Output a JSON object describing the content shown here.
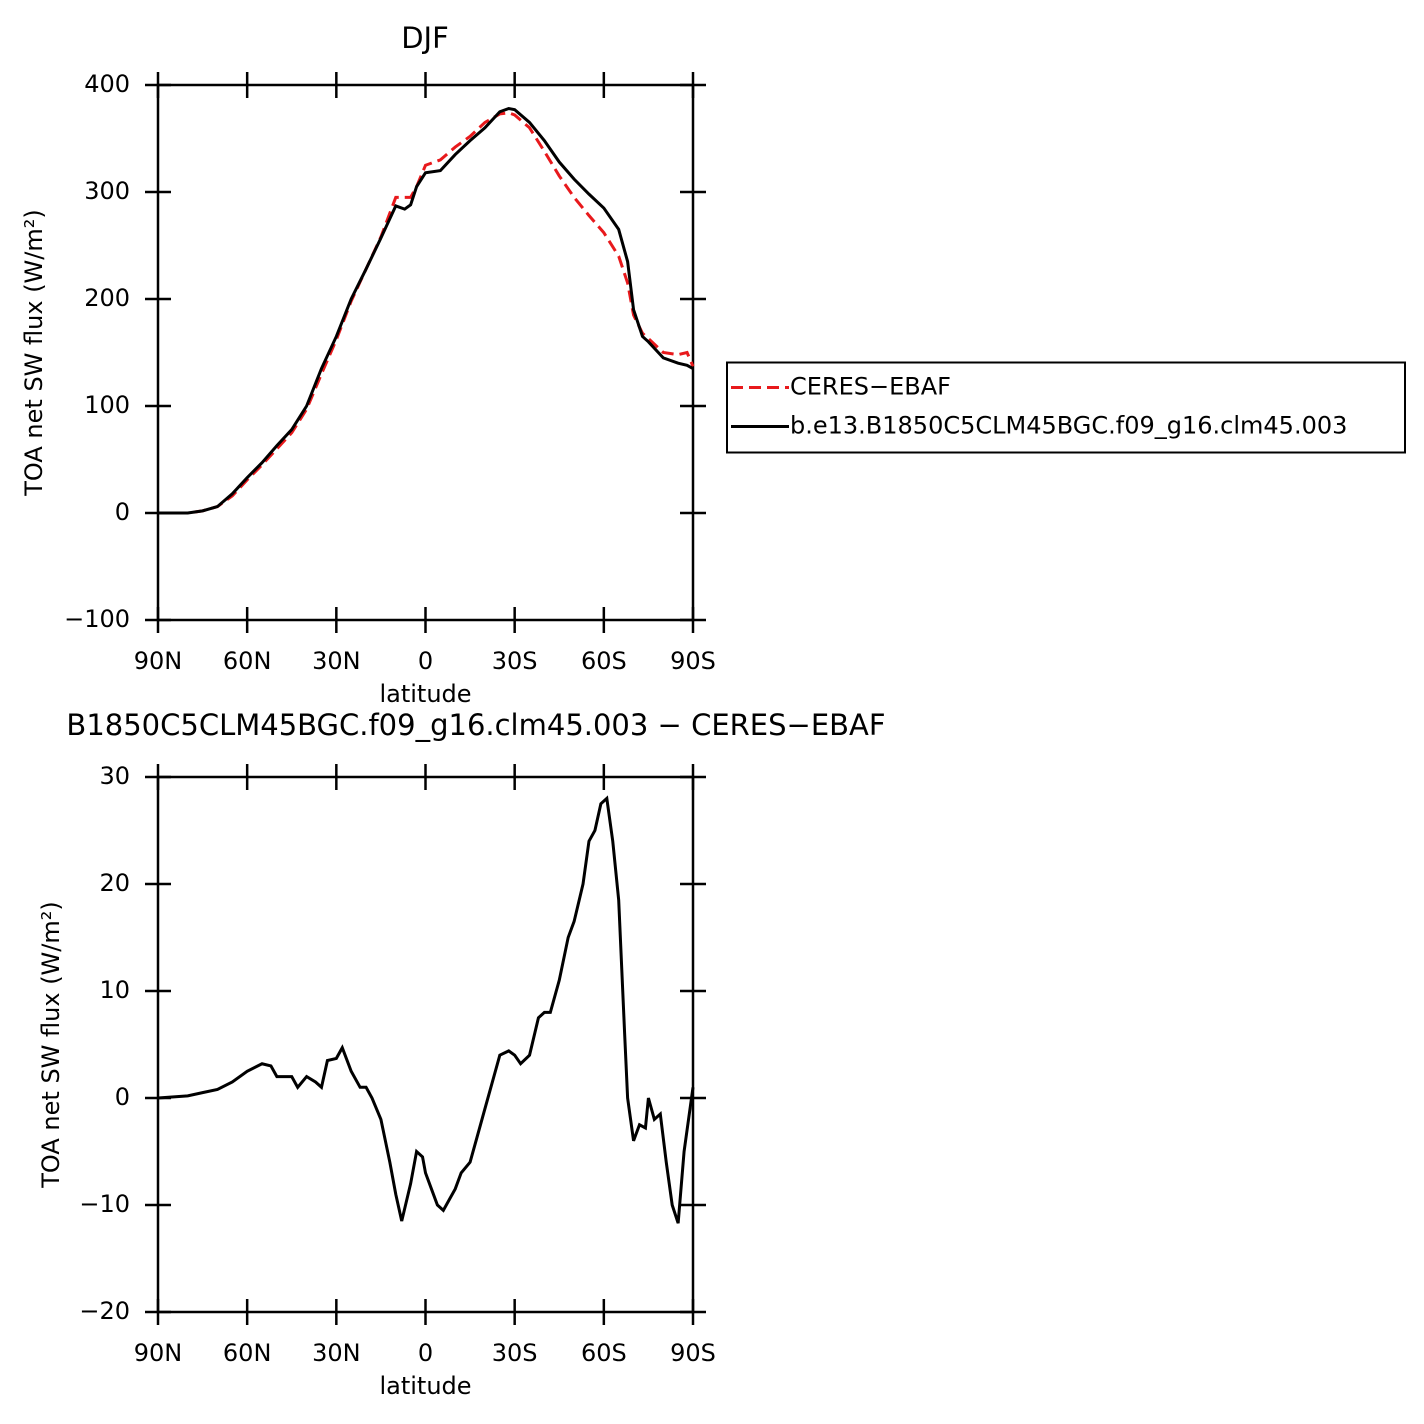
{
  "chart_data": [
    {
      "type": "line",
      "title": "DJF",
      "ylabel": "TOA net SW flux (W/m²)",
      "xlabel": "latitude",
      "x": [
        90,
        85,
        80,
        75,
        70,
        65,
        60,
        55,
        50,
        45,
        40,
        35,
        30,
        25,
        20,
        15,
        10,
        7,
        5,
        3,
        0,
        -5,
        -10,
        -15,
        -20,
        -25,
        -28,
        -30,
        -35,
        -40,
        -45,
        -50,
        -55,
        -60,
        -65,
        -68,
        -70,
        -73,
        -75,
        -80,
        -85,
        -88,
        -90
      ],
      "series": [
        {
          "name": "CERES−EBAF",
          "color": "#e8191c",
          "dashed": true,
          "values": [
            0,
            0,
            0,
            2,
            6,
            16,
            31,
            45,
            60,
            75,
            97,
            130,
            162,
            198,
            228,
            258,
            295,
            295,
            295,
            305,
            325,
            330,
            342,
            352,
            365,
            373,
            374,
            372,
            360,
            338,
            315,
            295,
            278,
            262,
            240,
            215,
            185,
            168,
            163,
            150,
            148,
            150,
            137
          ]
        },
        {
          "name": "b.e13.B1850C5CLM45BGC.f09_g16.clm45.003",
          "color": "#000000",
          "dashed": false,
          "values": [
            0,
            0,
            0,
            2,
            6,
            18,
            33,
            47,
            63,
            78,
            100,
            135,
            165,
            200,
            228,
            257,
            287,
            284,
            288,
            305,
            318,
            320,
            335,
            348,
            360,
            375,
            378,
            377,
            365,
            348,
            328,
            312,
            298,
            285,
            265,
            235,
            190,
            165,
            160,
            145,
            140,
            138,
            135
          ]
        }
      ],
      "xlim": [
        90,
        -90
      ],
      "xticks": [
        {
          "value": 90,
          "label": "90N"
        },
        {
          "value": 60,
          "label": "60N"
        },
        {
          "value": 30,
          "label": "30N"
        },
        0,
        {
          "value": -30,
          "label": "30S"
        },
        {
          "value": -60,
          "label": "60S"
        },
        {
          "value": -90,
          "label": "90S"
        }
      ],
      "ylim": [
        -100,
        400
      ],
      "yticks": [
        {
          "value": -100,
          "label": "−100"
        },
        0,
        100,
        200,
        300,
        400
      ],
      "legend": "right"
    },
    {
      "type": "line",
      "title": "B1850C5CLM45BGC.f09_g16.clm45.003 − CERES−EBAF",
      "ylabel": "TOA net SW flux (W/m²)",
      "xlabel": "latitude",
      "x": [
        90,
        80,
        75,
        70,
        65,
        60,
        55,
        52,
        50,
        45,
        43,
        40,
        37,
        35,
        33,
        30,
        28,
        25,
        22,
        20,
        18,
        15,
        12,
        10,
        8,
        5,
        3,
        1,
        0,
        -2,
        -4,
        -6,
        -8,
        -10,
        -12,
        -15,
        -17,
        -20,
        -23,
        -25,
        -28,
        -30,
        -32,
        -35,
        -38,
        -40,
        -42,
        -45,
        -48,
        -50,
        -53,
        -55,
        -57,
        -59,
        -61,
        -63,
        -65,
        -67,
        -68,
        -70,
        -72,
        -74,
        -75,
        -77,
        -79,
        -81,
        -83,
        -85,
        -87,
        -90
      ],
      "values": [
        0,
        0.2,
        0.5,
        0.8,
        1.5,
        2.5,
        3.2,
        3,
        2,
        2,
        1,
        2,
        1.5,
        1,
        3.5,
        3.7,
        4.7,
        2.5,
        1,
        1,
        0,
        -2,
        -6,
        -9,
        -11.5,
        -8,
        -5,
        -5.5,
        -7,
        -8.5,
        -10,
        -10.5,
        -9.5,
        -8.5,
        -7,
        -6,
        -4,
        -1,
        2,
        4,
        4.4,
        4,
        3.2,
        4,
        7.5,
        8,
        8,
        11,
        15,
        16.5,
        20,
        24,
        25,
        27.5,
        28,
        24,
        18.5,
        6,
        0,
        -4,
        -2.5,
        -2.8,
        0,
        -2,
        -1.5,
        -6,
        -10,
        -11.7,
        -5,
        1
      ],
      "color": "#000000",
      "xlim": [
        90,
        -90
      ],
      "xticks": [
        {
          "value": 90,
          "label": "90N"
        },
        {
          "value": 60,
          "label": "60N"
        },
        {
          "value": 30,
          "label": "30N"
        },
        0,
        {
          "value": -30,
          "label": "30S"
        },
        {
          "value": -60,
          "label": "60S"
        },
        {
          "value": -90,
          "label": "90S"
        }
      ],
      "ylim": [
        -20,
        30
      ],
      "yticks": [
        {
          "value": -20,
          "label": "−20"
        },
        {
          "value": -10,
          "label": "−10"
        },
        0,
        10,
        20,
        30
      ]
    }
  ]
}
